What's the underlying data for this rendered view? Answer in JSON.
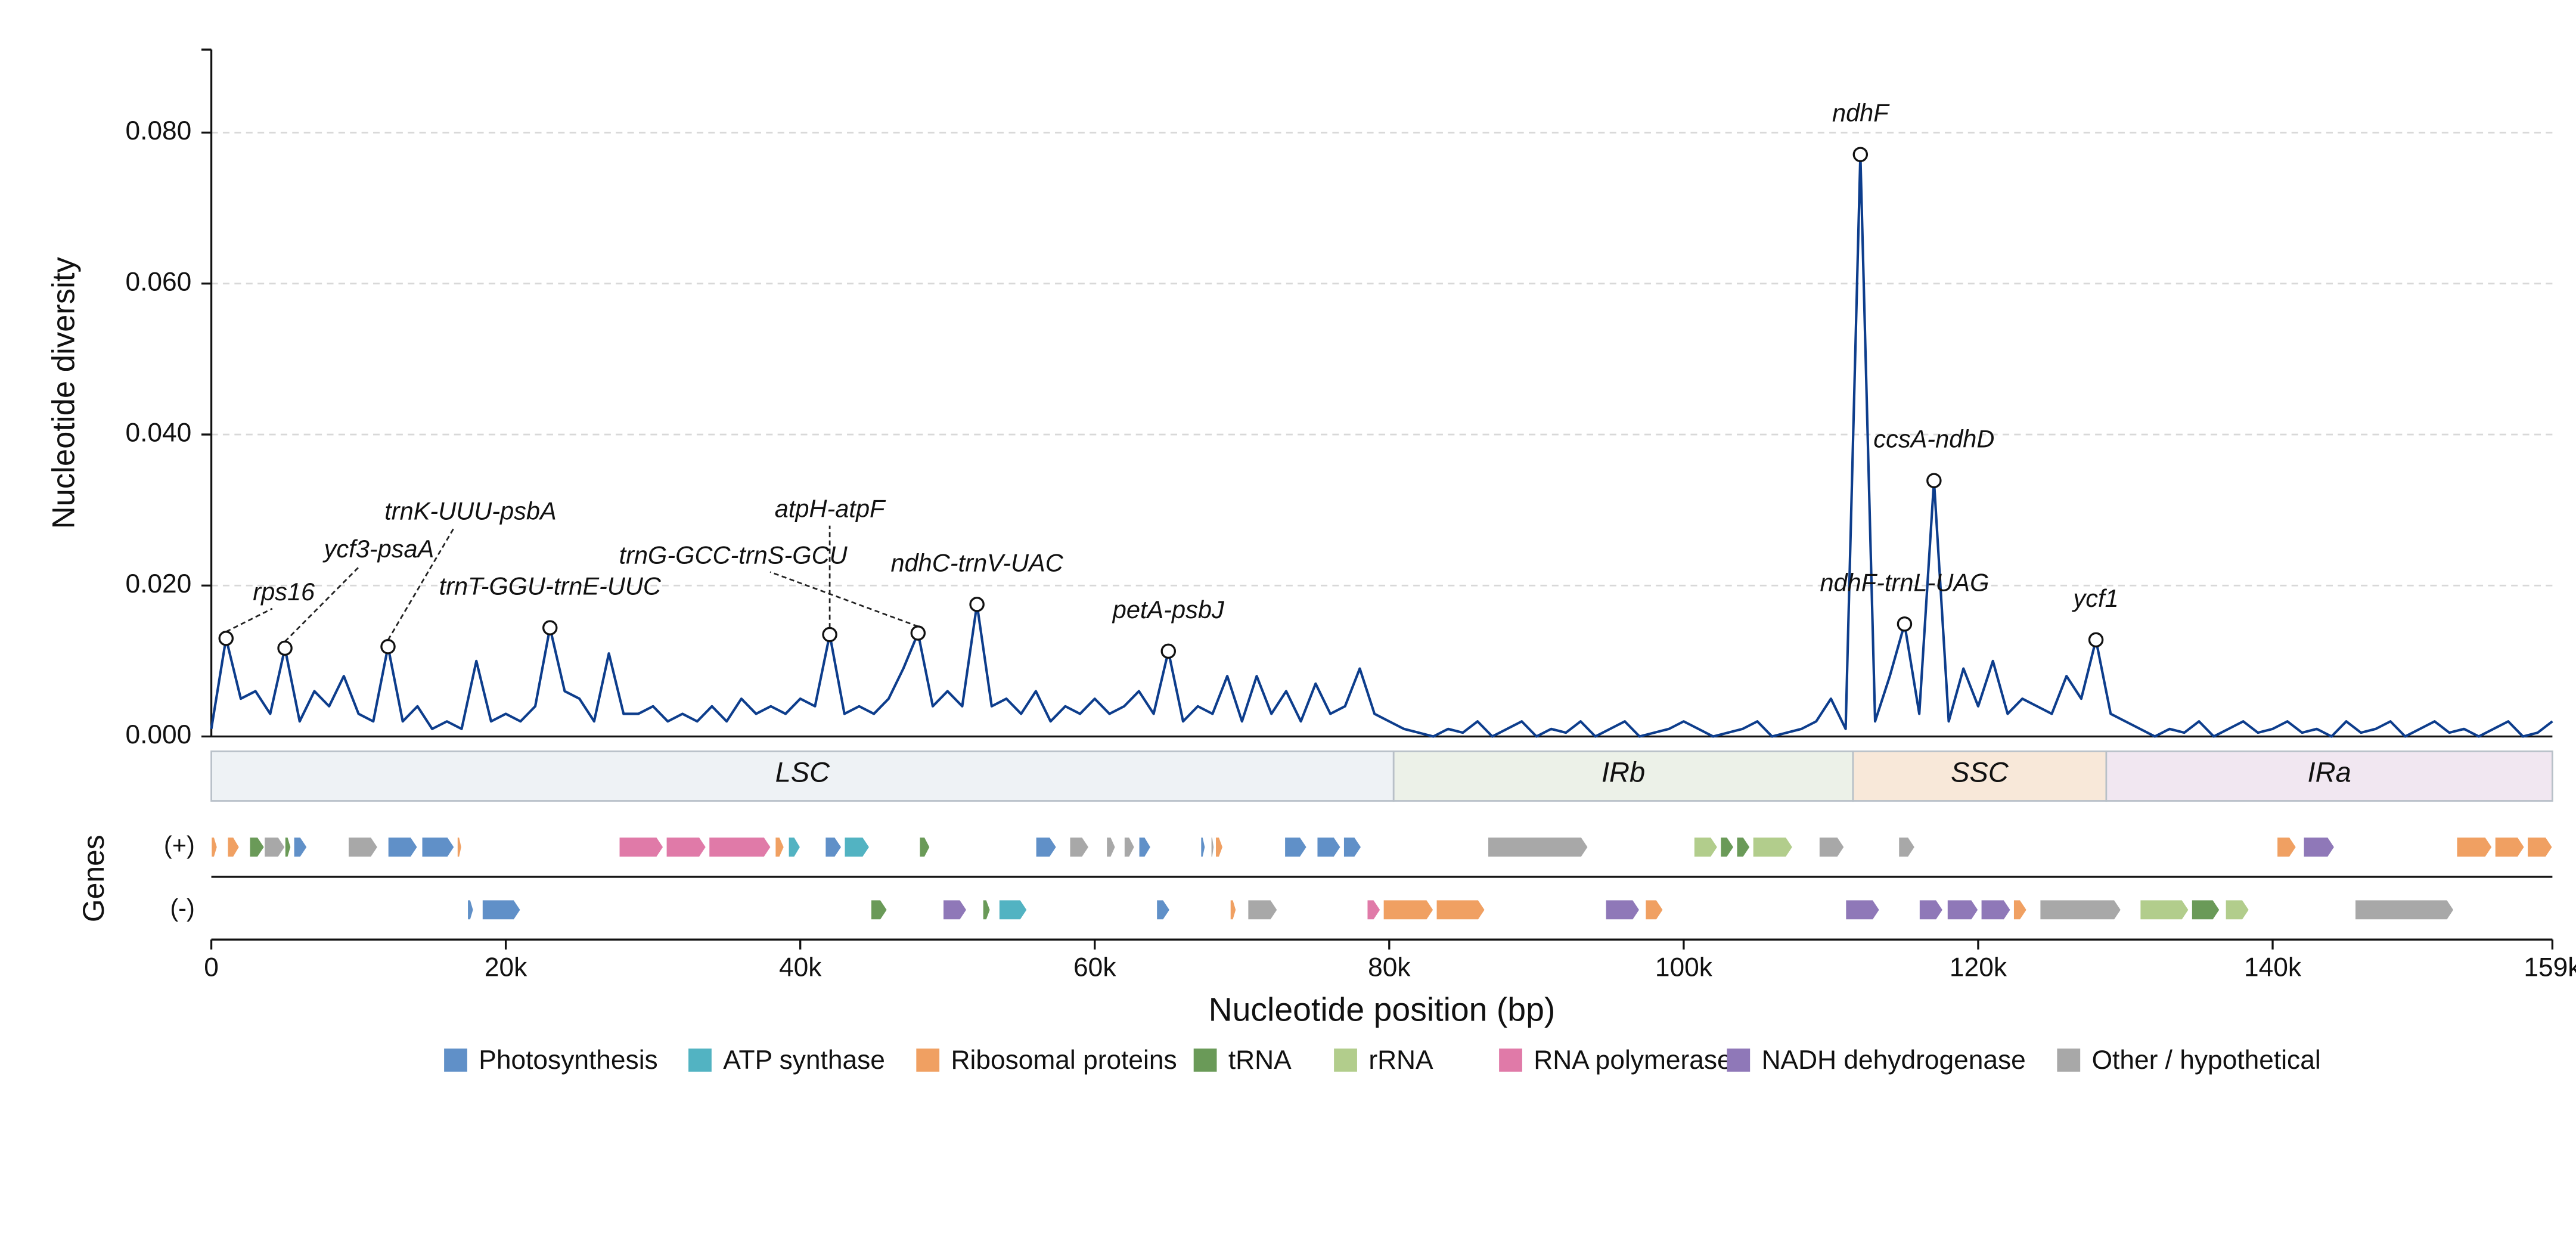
{
  "chart_data": {
    "type": "line",
    "color": "#0d3d8c",
    "ylabel": "Nucleotide diversity",
    "xlabel": "Nucleotide position (bp)",
    "genes_label": "Genes",
    "strand_labels": [
      "(+)",
      "(-)"
    ],
    "xlim": [
      0,
      159000
    ],
    "ylim": [
      0,
      0.091
    ],
    "grid": true,
    "yticks": [
      {
        "value": 0,
        "label": "0.000"
      },
      {
        "value": 0.02,
        "label": "0.020"
      },
      {
        "value": 0.04,
        "label": "0.040"
      },
      {
        "value": 0.06,
        "label": "0.060"
      },
      {
        "value": 0.08,
        "label": "0.080"
      }
    ],
    "xticks": [
      0,
      {
        "value": 20000,
        "label": "20k"
      },
      {
        "value": 40000,
        "label": "40k"
      },
      {
        "value": 60000,
        "label": "60k"
      },
      {
        "value": 80000,
        "label": "80k"
      },
      {
        "value": 100000,
        "label": "100k"
      },
      {
        "value": 120000,
        "label": "120k"
      },
      {
        "value": 140000,
        "label": "140k"
      },
      {
        "value": 159000,
        "label": "159k"
      }
    ],
    "x": [
      0,
      1000,
      2000,
      3000,
      4000,
      5000,
      6000,
      7000,
      8000,
      9000,
      10000,
      11000,
      12000,
      13000,
      14000,
      15000,
      16000,
      17000,
      18000,
      19000,
      20000,
      21000,
      22000,
      23000,
      24000,
      25000,
      26000,
      27000,
      28000,
      29000,
      30000,
      31000,
      32000,
      33000,
      34000,
      35000,
      36000,
      37000,
      38000,
      39000,
      40000,
      41000,
      42000,
      43000,
      44000,
      45000,
      46000,
      47000,
      48000,
      49000,
      50000,
      51000,
      52000,
      53000,
      54000,
      55000,
      56000,
      57000,
      58000,
      59000,
      60000,
      61000,
      62000,
      63000,
      64000,
      65000,
      66000,
      67000,
      68000,
      69000,
      70000,
      71000,
      72000,
      73000,
      74000,
      75000,
      76000,
      77000,
      78000,
      79000,
      80000,
      81000,
      82000,
      83000,
      84000,
      85000,
      86000,
      87000,
      88000,
      89000,
      90000,
      91000,
      92000,
      93000,
      94000,
      95000,
      96000,
      97000,
      98000,
      99000,
      100000,
      101000,
      102000,
      103000,
      104000,
      105000,
      106000,
      107000,
      108000,
      109000,
      110000,
      111000,
      112000,
      113000,
      114000,
      115000,
      116000,
      117000,
      118000,
      119000,
      120000,
      121000,
      122000,
      123000,
      124000,
      125000,
      126000,
      127000,
      128000,
      129000,
      130000,
      131000,
      132000,
      133000,
      134000,
      135000,
      136000,
      137000,
      138000,
      139000,
      140000,
      141000,
      142000,
      143000,
      144000,
      145000,
      146000,
      147000,
      148000,
      149000,
      150000,
      151000,
      152000,
      153000,
      154000,
      155000,
      156000,
      157000,
      158000,
      159000
    ],
    "values": [
      0.001,
      0.013,
      0.005,
      0.006,
      0.003,
      0.0117,
      0.002,
      0.006,
      0.004,
      0.008,
      0.003,
      0.002,
      0.0119,
      0.002,
      0.004,
      0.001,
      0.002,
      0.001,
      0.01,
      0.002,
      0.003,
      0.002,
      0.004,
      0.0144,
      0.006,
      0.005,
      0.002,
      0.011,
      0.003,
      0.003,
      0.004,
      0.002,
      0.003,
      0.002,
      0.004,
      0.002,
      0.005,
      0.003,
      0.004,
      0.003,
      0.005,
      0.004,
      0.0135,
      0.003,
      0.004,
      0.003,
      0.005,
      0.009,
      0.0137,
      0.004,
      0.006,
      0.004,
      0.0175,
      0.004,
      0.005,
      0.003,
      0.006,
      0.002,
      0.004,
      0.003,
      0.005,
      0.003,
      0.004,
      0.006,
      0.003,
      0.0113,
      0.002,
      0.004,
      0.003,
      0.008,
      0.002,
      0.008,
      0.003,
      0.006,
      0.002,
      0.007,
      0.003,
      0.004,
      0.009,
      0.003,
      0.002,
      0.001,
      0.0005,
      0,
      0.001,
      0.0005,
      0.002,
      0,
      0.001,
      0.002,
      0,
      0.001,
      0.0005,
      0.002,
      0,
      0.001,
      0.002,
      0,
      0.0005,
      0.001,
      0.002,
      0.001,
      0,
      0.0005,
      0.001,
      0.002,
      0,
      0.0005,
      0.001,
      0.002,
      0.005,
      0.001,
      0.0771,
      0.002,
      0.008,
      0.0149,
      0.003,
      0.0339,
      0.002,
      0.009,
      0.004,
      0.01,
      0.003,
      0.005,
      0.004,
      0.003,
      0.008,
      0.005,
      0.0128,
      0.003,
      0.002,
      0.001,
      0,
      0.001,
      0.0005,
      0.002,
      0,
      0.001,
      0.002,
      0.0005,
      0.001,
      0.002,
      0.0005,
      0.001,
      0,
      0.002,
      0.0005,
      0.001,
      0.002,
      0,
      0.001,
      0.002,
      0.0005,
      0.001,
      0,
      0.001,
      0.002,
      0,
      0.0005,
      0.002
    ],
    "annotations": [
      {
        "label": "rps16",
        "x": 1000,
        "y": 0.013
      },
      {
        "label": "ycf3-psaA",
        "x": 5000,
        "y": 0.0117
      },
      {
        "label": "trnK-UUU-psbA",
        "x": 12000,
        "y": 0.0119
      },
      {
        "label": "trnT-GGU-trnE-UUC",
        "x": 23000,
        "y": 0.0144
      },
      {
        "label": "atpH-atpF",
        "x": 42000,
        "y": 0.0135
      },
      {
        "label": "trnG-GCC-trnS-GCU",
        "x": 48000,
        "y": 0.0137
      },
      {
        "label": "ndhC-trnV-UAC",
        "x": 52000,
        "y": 0.0175
      },
      {
        "label": "petA-psbJ",
        "x": 65000,
        "y": 0.0113
      },
      {
        "label": "ndhF",
        "x": 112000,
        "y": 0.0771
      },
      {
        "label": "ndhF-trnL-UAG",
        "x": 115000,
        "y": 0.0149
      },
      {
        "label": "ccsA-ndhD",
        "x": 117000,
        "y": 0.0339
      },
      {
        "label": "ycf1",
        "x": 128000,
        "y": 0.0128
      }
    ],
    "regions": [
      {
        "name": "LSC",
        "start": 0,
        "end": 80300,
        "color": "#eef2f5"
      },
      {
        "name": "IRb",
        "start": 80300,
        "end": 111500,
        "color": "#ecf1e8"
      },
      {
        "name": "SSC",
        "start": 111500,
        "end": 128700,
        "color": "#f8e8d9"
      },
      {
        "name": "IRa",
        "start": 128700,
        "end": 159000,
        "color": "#f1e7f1"
      }
    ],
    "legend": [
      {
        "name": "Photosynthesis",
        "color": "#6090c8"
      },
      {
        "name": "ATP synthase",
        "color": "#52b3c2"
      },
      {
        "name": "Ribosomal proteins",
        "color": "#f0a062"
      },
      {
        "name": "tRNA",
        "color": "#6a9a58"
      },
      {
        "name": "rRNA",
        "color": "#b2cd8c"
      },
      {
        "name": "RNA polymerase",
        "color": "#e07aa8"
      },
      {
        "name": "NADH dehydrogenase",
        "color": "#8f78b8"
      },
      {
        "name": "Other / hypothetical",
        "color": "#a8a8a8"
      }
    ],
    "genes": [
      {
        "start": 0,
        "end": 400,
        "strand": "(+)",
        "category": "Ribosomal proteins"
      },
      {
        "start": 1100,
        "end": 1900,
        "strand": "(+)",
        "category": "Ribosomal proteins"
      },
      {
        "start": 2600,
        "end": 3600,
        "strand": "(+)",
        "category": "tRNA"
      },
      {
        "start": 3600,
        "end": 5000,
        "strand": "(+)",
        "category": "Other / hypothetical"
      },
      {
        "start": 5000,
        "end": 5400,
        "strand": "(+)",
        "category": "tRNA"
      },
      {
        "start": 5600,
        "end": 6500,
        "strand": "(+)",
        "category": "Photosynthesis"
      },
      {
        "start": 9300,
        "end": 11300,
        "strand": "(+)",
        "category": "Other / hypothetical"
      },
      {
        "start": 12000,
        "end": 14000,
        "strand": "(+)",
        "category": "Photosynthesis"
      },
      {
        "start": 14300,
        "end": 16500,
        "strand": "(+)",
        "category": "Photosynthesis"
      },
      {
        "start": 16700,
        "end": 17000,
        "strand": "(+)",
        "category": "Ribosomal proteins"
      },
      {
        "start": 27700,
        "end": 30700,
        "strand": "(+)",
        "category": "RNA polymerase"
      },
      {
        "start": 30900,
        "end": 33600,
        "strand": "(+)",
        "category": "RNA polymerase"
      },
      {
        "start": 33800,
        "end": 38000,
        "strand": "(+)",
        "category": "RNA polymerase"
      },
      {
        "start": 38300,
        "end": 38900,
        "strand": "(+)",
        "category": "Ribosomal proteins"
      },
      {
        "start": 39200,
        "end": 40000,
        "strand": "(+)",
        "category": "ATP synthase"
      },
      {
        "start": 41700,
        "end": 42800,
        "strand": "(+)",
        "category": "Photosynthesis"
      },
      {
        "start": 43000,
        "end": 44700,
        "strand": "(+)",
        "category": "ATP synthase"
      },
      {
        "start": 48100,
        "end": 48800,
        "strand": "(+)",
        "category": "tRNA"
      },
      {
        "start": 56000,
        "end": 57400,
        "strand": "(+)",
        "category": "Photosynthesis"
      },
      {
        "start": 58300,
        "end": 59600,
        "strand": "(+)",
        "category": "Other / hypothetical"
      },
      {
        "start": 60800,
        "end": 61400,
        "strand": "(+)",
        "category": "Other / hypothetical"
      },
      {
        "start": 62000,
        "end": 62700,
        "strand": "(+)",
        "category": "Other / hypothetical"
      },
      {
        "start": 63000,
        "end": 63800,
        "strand": "(+)",
        "category": "Photosynthesis"
      },
      {
        "start": 67200,
        "end": 67500,
        "strand": "(+)",
        "category": "Photosynthesis"
      },
      {
        "start": 67900,
        "end": 68100,
        "strand": "(+)",
        "category": "Other / hypothetical"
      },
      {
        "start": 68200,
        "end": 68700,
        "strand": "(+)",
        "category": "Ribosomal proteins"
      },
      {
        "start": 72900,
        "end": 74400,
        "strand": "(+)",
        "category": "Photosynthesis"
      },
      {
        "start": 75100,
        "end": 76700,
        "strand": "(+)",
        "category": "Photosynthesis"
      },
      {
        "start": 76900,
        "end": 78100,
        "strand": "(+)",
        "category": "Photosynthesis"
      },
      {
        "start": 86700,
        "end": 93500,
        "strand": "(+)",
        "category": "Other / hypothetical"
      },
      {
        "start": 100700,
        "end": 102300,
        "strand": "(+)",
        "category": "rRNA"
      },
      {
        "start": 102500,
        "end": 103400,
        "strand": "(+)",
        "category": "tRNA"
      },
      {
        "start": 103600,
        "end": 104500,
        "strand": "(+)",
        "category": "tRNA"
      },
      {
        "start": 104700,
        "end": 107400,
        "strand": "(+)",
        "category": "rRNA"
      },
      {
        "start": 109200,
        "end": 110900,
        "strand": "(+)",
        "category": "Other / hypothetical"
      },
      {
        "start": 114600,
        "end": 115700,
        "strand": "(+)",
        "category": "Other / hypothetical"
      },
      {
        "start": 140300,
        "end": 141600,
        "strand": "(+)",
        "category": "Ribosomal proteins"
      },
      {
        "start": 142100,
        "end": 144200,
        "strand": "(+)",
        "category": "NADH dehydrogenase"
      },
      {
        "start": 152500,
        "end": 154900,
        "strand": "(+)",
        "category": "Ribosomal proteins"
      },
      {
        "start": 155100,
        "end": 157100,
        "strand": "(+)",
        "category": "Ribosomal proteins"
      },
      {
        "start": 157300,
        "end": 159000,
        "strand": "(+)",
        "category": "Ribosomal proteins"
      },
      {
        "start": 17400,
        "end": 17800,
        "strand": "(-)",
        "category": "Photosynthesis"
      },
      {
        "start": 18400,
        "end": 21000,
        "strand": "(-)",
        "category": "Photosynthesis"
      },
      {
        "start": 44800,
        "end": 45900,
        "strand": "(-)",
        "category": "tRNA"
      },
      {
        "start": 49700,
        "end": 51300,
        "strand": "(-)",
        "category": "NADH dehydrogenase"
      },
      {
        "start": 52400,
        "end": 52900,
        "strand": "(-)",
        "category": "tRNA"
      },
      {
        "start": 53500,
        "end": 55400,
        "strand": "(-)",
        "category": "ATP synthase"
      },
      {
        "start": 64200,
        "end": 65100,
        "strand": "(-)",
        "category": "Photosynthesis"
      },
      {
        "start": 69200,
        "end": 69600,
        "strand": "(-)",
        "category": "Ribosomal proteins"
      },
      {
        "start": 70400,
        "end": 72400,
        "strand": "(-)",
        "category": "Other / hypothetical"
      },
      {
        "start": 78500,
        "end": 79400,
        "strand": "(-)",
        "category": "RNA polymerase"
      },
      {
        "start": 79600,
        "end": 83000,
        "strand": "(-)",
        "category": "Ribosomal proteins"
      },
      {
        "start": 83200,
        "end": 86500,
        "strand": "(-)",
        "category": "Ribosomal proteins"
      },
      {
        "start": 94700,
        "end": 97000,
        "strand": "(-)",
        "category": "NADH dehydrogenase"
      },
      {
        "start": 97400,
        "end": 98600,
        "strand": "(-)",
        "category": "Ribosomal proteins"
      },
      {
        "start": 111000,
        "end": 113300,
        "strand": "(-)",
        "category": "NADH dehydrogenase"
      },
      {
        "start": 116000,
        "end": 117600,
        "strand": "(-)",
        "category": "NADH dehydrogenase"
      },
      {
        "start": 117900,
        "end": 120000,
        "strand": "(-)",
        "category": "NADH dehydrogenase"
      },
      {
        "start": 120200,
        "end": 122200,
        "strand": "(-)",
        "category": "NADH dehydrogenase"
      },
      {
        "start": 122400,
        "end": 123300,
        "strand": "(-)",
        "category": "Ribosomal proteins"
      },
      {
        "start": 124200,
        "end": 129700,
        "strand": "(-)",
        "category": "Other / hypothetical"
      },
      {
        "start": 131000,
        "end": 134300,
        "strand": "(-)",
        "category": "rRNA"
      },
      {
        "start": 134500,
        "end": 136400,
        "strand": "(-)",
        "category": "tRNA"
      },
      {
        "start": 136800,
        "end": 138400,
        "strand": "(-)",
        "category": "rRNA"
      },
      {
        "start": 145600,
        "end": 152300,
        "strand": "(-)",
        "category": "Other / hypothetical"
      }
    ]
  }
}
